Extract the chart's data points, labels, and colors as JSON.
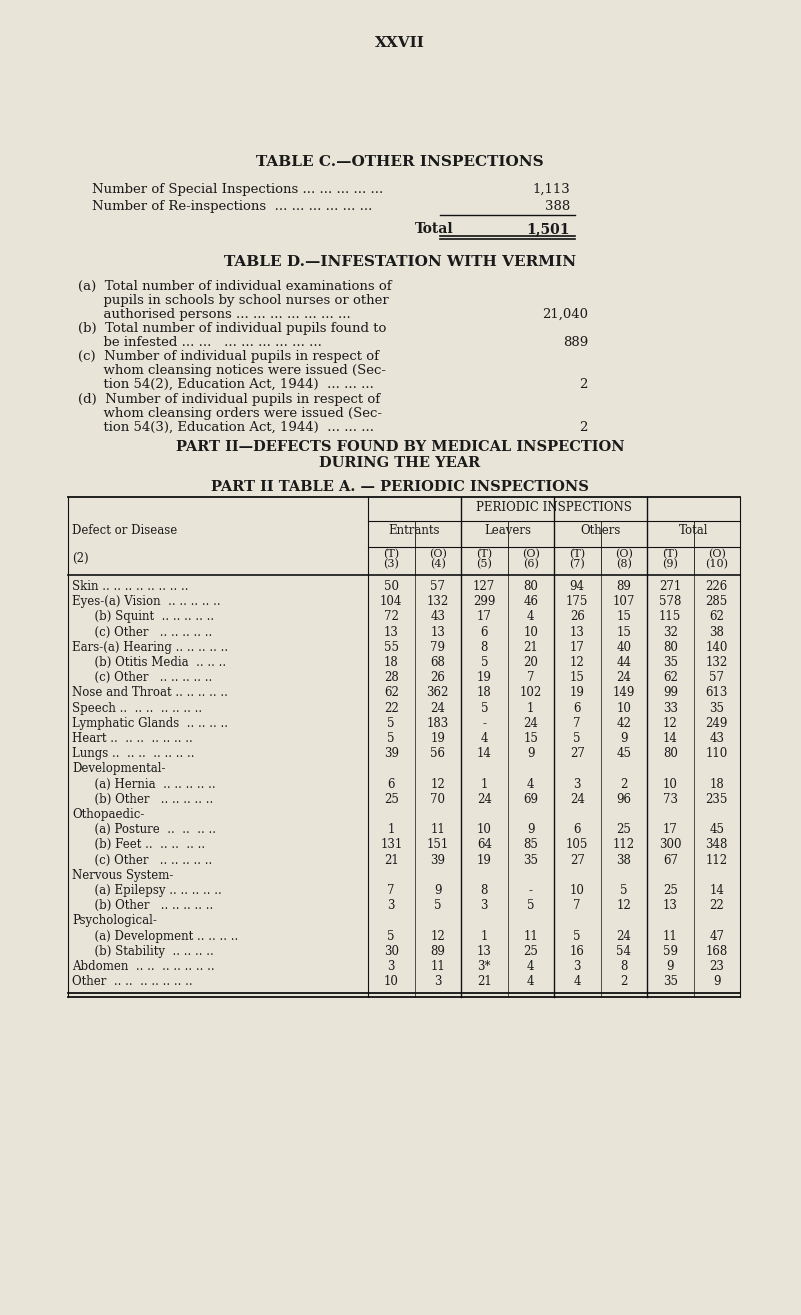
{
  "bg_color": "#e8e4d8",
  "page_title": "XXVII",
  "table_c_title": "TABLE C.—OTHER INSPECTIONS",
  "table_c_row1_label": "Number of Special Inspections ... ... ... ... ...",
  "table_c_row1_val": "1,113",
  "table_c_row2_label": "Number of Re-inspections  ... ... ... ... ... ...",
  "table_c_row2_val": "388",
  "table_c_total_label": "Total",
  "table_c_total_val": "1,501",
  "table_d_title": "TABLE D.—INFESTATION WITH VERMIN",
  "table_d_a_line1": "(a)  Total number of individual examinations of",
  "table_d_a_line2": "      pupils in schools by school nurses or other",
  "table_d_a_line3": "      authorised persons ... ... ... ... ... ... ...",
  "table_d_a_val": "21,040",
  "table_d_b_line1": "(b)  Total number of individual pupils found to",
  "table_d_b_line2": "      be infested ... ...   ... ... ... ... ... ...",
  "table_d_b_val": "889",
  "table_d_c_line1": "(c)  Number of individual pupils in respect of",
  "table_d_c_line2": "      whom cleansing notices were issued (Sec-",
  "table_d_c_line3": "      tion 54(2), Education Act, 1944)  ... ... ...",
  "table_d_c_val": "2",
  "table_d_d_line1": "(d)  Number of individual pupils in respect of",
  "table_d_d_line2": "      whom cleansing orders were issued (Sec-",
  "table_d_d_line3": "      tion 54(3), Education Act, 1944)  ... ... ...",
  "table_d_d_val": "2",
  "part2_heading_line1": "PART II—DEFECTS FOUND BY MEDICAL INSPECTION",
  "part2_heading_line2": "DURING THE YEAR",
  "part2_table_heading": "PART II TABLE A. — PERIODIC INSPECTIONS",
  "periodic_header": "PERIODIC INSPECTIONS",
  "col_groups": [
    "Entrants",
    "Leavers",
    "Others",
    "Total"
  ],
  "row_label_header1": "Defect or Disease",
  "row_label_header2": "(2)",
  "col_sub_top": [
    "(T)",
    "(O)",
    "(T)",
    "(O)",
    "(T)",
    "(O)",
    "(T)",
    "(O)"
  ],
  "col_sub_bot": [
    "(3)",
    "(4)",
    "(5)",
    "(6)",
    "(7)",
    "(8)",
    "(9)",
    "(10)"
  ],
  "rows": [
    {
      "label": "Skin .. .. .. .. .. .. .. ..",
      "indent": false,
      "vals": [
        "50",
        "57",
        "127",
        "80",
        "94",
        "89",
        "271",
        "226"
      ]
    },
    {
      "label": "Eyes-(a) Vision  .. .. .. .. ..",
      "indent": false,
      "vals": [
        "104",
        "132",
        "299",
        "46",
        "175",
        "107",
        "578",
        "285"
      ]
    },
    {
      "label": "      (b) Squint  .. .. .. .. ..",
      "indent": true,
      "vals": [
        "72",
        "43",
        "17",
        "4",
        "26",
        "15",
        "115",
        "62"
      ]
    },
    {
      "label": "      (c) Other   .. .. .. .. ..",
      "indent": true,
      "vals": [
        "13",
        "13",
        "6",
        "10",
        "13",
        "15",
        "32",
        "38"
      ]
    },
    {
      "label": "Ears-(a) Hearing .. .. .. .. ..",
      "indent": false,
      "vals": [
        "55",
        "79",
        "8",
        "21",
        "17",
        "40",
        "80",
        "140"
      ]
    },
    {
      "label": "      (b) Otitis Media  .. .. ..",
      "indent": true,
      "vals": [
        "18",
        "68",
        "5",
        "20",
        "12",
        "44",
        "35",
        "132"
      ]
    },
    {
      "label": "      (c) Other   .. .. .. .. ..",
      "indent": true,
      "vals": [
        "28",
        "26",
        "19",
        "7",
        "15",
        "24",
        "62",
        "57"
      ]
    },
    {
      "label": "Nose and Throat .. .. .. .. ..",
      "indent": false,
      "vals": [
        "62",
        "362",
        "18",
        "102",
        "19",
        "149",
        "99",
        "613"
      ]
    },
    {
      "label": "Speech ..  .. ..  .. .. .. ..",
      "indent": false,
      "vals": [
        "22",
        "24",
        "5",
        "1",
        "6",
        "10",
        "33",
        "35"
      ]
    },
    {
      "label": "Lymphatic Glands  .. .. .. ..",
      "indent": false,
      "vals": [
        "5",
        "183",
        "-",
        "24",
        "7",
        "42",
        "12",
        "249"
      ]
    },
    {
      "label": "Heart ..  .. ..  .. .. .. ..",
      "indent": false,
      "vals": [
        "5",
        "19",
        "4",
        "15",
        "5",
        "9",
        "14",
        "43"
      ]
    },
    {
      "label": "Lungs ..  .. ..  .. .. .. ..",
      "indent": false,
      "vals": [
        "39",
        "56",
        "14",
        "9",
        "27",
        "45",
        "80",
        "110"
      ]
    },
    {
      "label": "Developmental-",
      "indent": false,
      "vals": [
        "",
        "",
        "",
        "",
        "",
        "",
        "",
        ""
      ],
      "section": true
    },
    {
      "label": "      (a) Hernia  .. .. .. .. ..",
      "indent": true,
      "vals": [
        "6",
        "12",
        "1",
        "4",
        "3",
        "2",
        "10",
        "18"
      ]
    },
    {
      "label": "      (b) Other   .. .. .. .. ..",
      "indent": true,
      "vals": [
        "25",
        "70",
        "24",
        "69",
        "24",
        "96",
        "73",
        "235"
      ]
    },
    {
      "label": "Othopaedic-",
      "indent": false,
      "vals": [
        "",
        "",
        "",
        "",
        "",
        "",
        "",
        ""
      ],
      "section": true
    },
    {
      "label": "      (a) Posture  ..  ..  .. ..",
      "indent": true,
      "vals": [
        "1",
        "11",
        "10",
        "9",
        "6",
        "25",
        "17",
        "45"
      ]
    },
    {
      "label": "      (b) Feet ..  .. ..  .. ..",
      "indent": true,
      "vals": [
        "131",
        "151",
        "64",
        "85",
        "105",
        "112",
        "300",
        "348"
      ]
    },
    {
      "label": "      (c) Other   .. .. .. .. ..",
      "indent": true,
      "vals": [
        "21",
        "39",
        "19",
        "35",
        "27",
        "38",
        "67",
        "112"
      ]
    },
    {
      "label": "Nervous System-",
      "indent": false,
      "vals": [
        "",
        "",
        "",
        "",
        "",
        "",
        "",
        ""
      ],
      "section": true
    },
    {
      "label": "      (a) Epilepsy .. .. .. .. ..",
      "indent": true,
      "vals": [
        "7",
        "9",
        "8",
        "-",
        "10",
        "5",
        "25",
        "14"
      ]
    },
    {
      "label": "      (b) Other   .. .. .. .. ..",
      "indent": true,
      "vals": [
        "3",
        "5",
        "3",
        "5",
        "7",
        "12",
        "13",
        "22"
      ]
    },
    {
      "label": "Psychological-",
      "indent": false,
      "vals": [
        "",
        "",
        "",
        "",
        "",
        "",
        "",
        ""
      ],
      "section": true
    },
    {
      "label": "      (a) Development .. .. .. ..",
      "indent": true,
      "vals": [
        "5",
        "12",
        "1",
        "11",
        "5",
        "24",
        "11",
        "47"
      ]
    },
    {
      "label": "      (b) Stability  .. .. .. ..",
      "indent": true,
      "vals": [
        "30",
        "89",
        "13",
        "25",
        "16",
        "54",
        "59",
        "168"
      ]
    },
    {
      "label": "Abdomen  .. ..  .. .. .. .. ..",
      "indent": false,
      "vals": [
        "3",
        "11",
        "3*",
        "4",
        "3",
        "8",
        "9",
        "23"
      ]
    },
    {
      "label": "Other  .. ..  .. .. .. .. ..",
      "indent": false,
      "vals": [
        "10",
        "3",
        "21",
        "4",
        "4",
        "2",
        "35",
        "9"
      ]
    }
  ],
  "text_color": "#1a1a1a",
  "line_color": "#111111"
}
